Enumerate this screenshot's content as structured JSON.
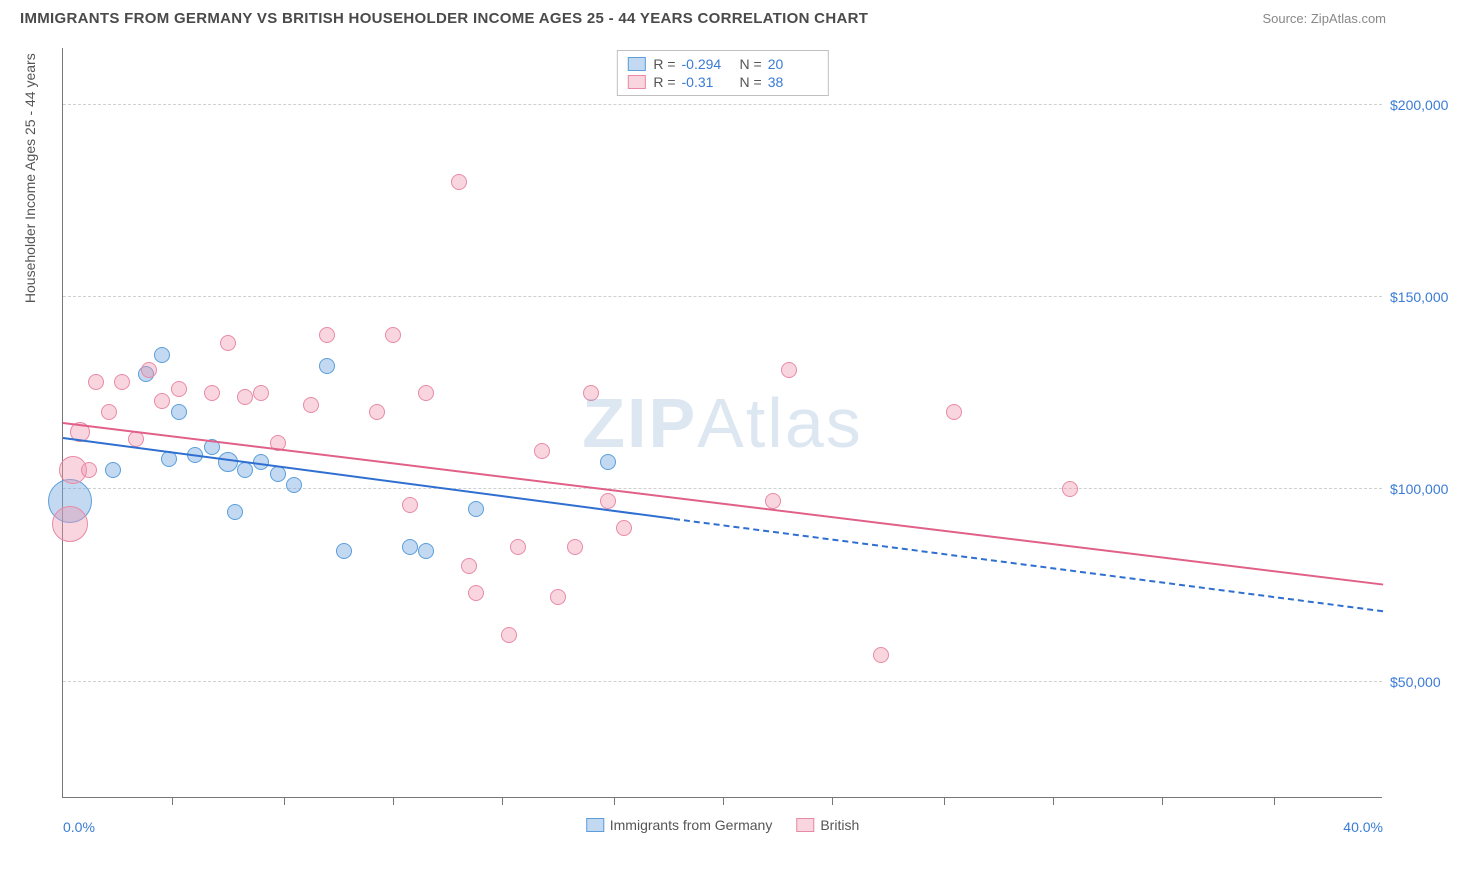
{
  "header": {
    "title": "IMMIGRANTS FROM GERMANY VS BRITISH HOUSEHOLDER INCOME AGES 25 - 44 YEARS CORRELATION CHART",
    "source": "Source: ZipAtlas.com"
  },
  "watermark": {
    "bold": "ZIP",
    "light": "Atlas"
  },
  "chart": {
    "type": "scatter",
    "y_axis_title": "Householder Income Ages 25 - 44 years",
    "background_color": "#ffffff",
    "grid_color": "#d0d0d0",
    "axis_color": "#777777",
    "text_color": "#555555",
    "value_color": "#3a7bd5",
    "x": {
      "min": 0.0,
      "max": 40.0,
      "unit": "%",
      "ticks": [
        0.0,
        40.0
      ],
      "tick_labels": [
        "0.0%",
        "40.0%"
      ],
      "minor_marks": [
        3.3,
        6.7,
        10.0,
        13.3,
        16.7,
        20.0,
        23.3,
        26.7,
        30.0,
        33.3,
        36.7
      ]
    },
    "y": {
      "min": 20000,
      "max": 215000,
      "ticks": [
        50000,
        100000,
        150000,
        200000
      ],
      "tick_labels": [
        "$50,000",
        "$100,000",
        "$150,000",
        "$200,000"
      ]
    },
    "series": [
      {
        "id": "germany",
        "label": "Immigrants from Germany",
        "color_fill": "rgba(120,170,225,0.45)",
        "color_stroke": "#5b9edb",
        "trend_color": "#2f6fd0",
        "R": -0.294,
        "N": 20,
        "marker_radius_default": 8,
        "trend": {
          "x1": 0.0,
          "y1": 113000,
          "x2": 18.5,
          "y2": 92000,
          "x2_ext": 40.0,
          "y2_ext": 68000
        },
        "points": [
          {
            "x": 0.2,
            "y": 97000,
            "r": 22
          },
          {
            "x": 1.5,
            "y": 105000,
            "r": 8
          },
          {
            "x": 2.5,
            "y": 130000,
            "r": 8
          },
          {
            "x": 3.0,
            "y": 135000,
            "r": 8
          },
          {
            "x": 3.2,
            "y": 108000,
            "r": 8
          },
          {
            "x": 3.5,
            "y": 120000,
            "r": 8
          },
          {
            "x": 4.0,
            "y": 109000,
            "r": 8
          },
          {
            "x": 4.5,
            "y": 111000,
            "r": 8
          },
          {
            "x": 5.0,
            "y": 107000,
            "r": 10
          },
          {
            "x": 5.2,
            "y": 94000,
            "r": 8
          },
          {
            "x": 5.5,
            "y": 105000,
            "r": 8
          },
          {
            "x": 6.0,
            "y": 107000,
            "r": 8
          },
          {
            "x": 6.5,
            "y": 104000,
            "r": 8
          },
          {
            "x": 7.0,
            "y": 101000,
            "r": 8
          },
          {
            "x": 8.0,
            "y": 132000,
            "r": 8
          },
          {
            "x": 8.5,
            "y": 84000,
            "r": 8
          },
          {
            "x": 10.5,
            "y": 85000,
            "r": 8
          },
          {
            "x": 11.0,
            "y": 84000,
            "r": 8
          },
          {
            "x": 12.5,
            "y": 95000,
            "r": 8
          },
          {
            "x": 16.5,
            "y": 107000,
            "r": 8
          }
        ]
      },
      {
        "id": "british",
        "label": "British",
        "color_fill": "rgba(240,150,175,0.40)",
        "color_stroke": "#e88aa5",
        "trend_color": "#e06088",
        "R": -0.31,
        "N": 38,
        "marker_radius_default": 8,
        "trend": {
          "x1": 0.0,
          "y1": 117000,
          "x2": 40.0,
          "y2": 75000
        },
        "points": [
          {
            "x": 0.2,
            "y": 91000,
            "r": 18
          },
          {
            "x": 0.3,
            "y": 105000,
            "r": 14
          },
          {
            "x": 0.5,
            "y": 115000,
            "r": 10
          },
          {
            "x": 1.0,
            "y": 128000,
            "r": 8
          },
          {
            "x": 1.4,
            "y": 120000,
            "r": 8
          },
          {
            "x": 2.2,
            "y": 113000,
            "r": 8
          },
          {
            "x": 2.6,
            "y": 131000,
            "r": 8
          },
          {
            "x": 3.0,
            "y": 123000,
            "r": 8
          },
          {
            "x": 3.5,
            "y": 126000,
            "r": 8
          },
          {
            "x": 4.5,
            "y": 125000,
            "r": 8
          },
          {
            "x": 5.0,
            "y": 138000,
            "r": 8
          },
          {
            "x": 5.5,
            "y": 124000,
            "r": 8
          },
          {
            "x": 6.5,
            "y": 112000,
            "r": 8
          },
          {
            "x": 7.5,
            "y": 122000,
            "r": 8
          },
          {
            "x": 8.0,
            "y": 140000,
            "r": 8
          },
          {
            "x": 9.5,
            "y": 120000,
            "r": 8
          },
          {
            "x": 10.0,
            "y": 140000,
            "r": 8
          },
          {
            "x": 10.5,
            "y": 96000,
            "r": 8
          },
          {
            "x": 11.0,
            "y": 125000,
            "r": 8
          },
          {
            "x": 12.0,
            "y": 180000,
            "r": 8
          },
          {
            "x": 12.3,
            "y": 80000,
            "r": 8
          },
          {
            "x": 12.5,
            "y": 73000,
            "r": 8
          },
          {
            "x": 13.5,
            "y": 62000,
            "r": 8
          },
          {
            "x": 13.8,
            "y": 85000,
            "r": 8
          },
          {
            "x": 14.5,
            "y": 110000,
            "r": 8
          },
          {
            "x": 15.0,
            "y": 72000,
            "r": 8
          },
          {
            "x": 15.5,
            "y": 85000,
            "r": 8
          },
          {
            "x": 16.0,
            "y": 125000,
            "r": 8
          },
          {
            "x": 16.5,
            "y": 97000,
            "r": 8
          },
          {
            "x": 17.0,
            "y": 90000,
            "r": 8
          },
          {
            "x": 21.5,
            "y": 97000,
            "r": 8
          },
          {
            "x": 22.0,
            "y": 131000,
            "r": 8
          },
          {
            "x": 24.8,
            "y": 57000,
            "r": 8
          },
          {
            "x": 27.0,
            "y": 120000,
            "r": 8
          },
          {
            "x": 30.5,
            "y": 100000,
            "r": 8
          },
          {
            "x": 0.8,
            "y": 105000,
            "r": 8
          },
          {
            "x": 1.8,
            "y": 128000,
            "r": 8
          },
          {
            "x": 6.0,
            "y": 125000,
            "r": 8
          }
        ]
      }
    ]
  }
}
